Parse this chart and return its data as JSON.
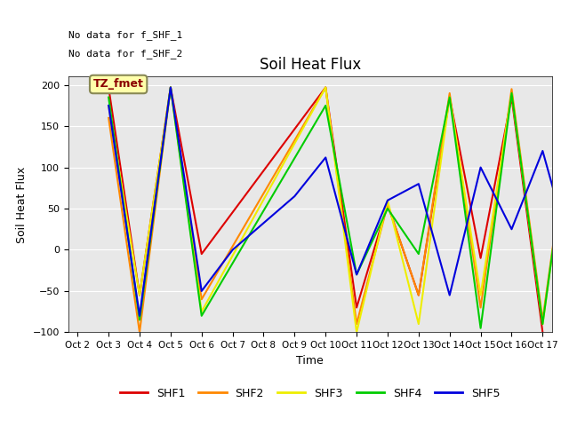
{
  "title": "Soil Heat Flux",
  "xlabel": "Time",
  "ylabel": "Soil Heat Flux",
  "ylim": [
    -100,
    210
  ],
  "yticks": [
    -100,
    -50,
    0,
    50,
    100,
    150,
    200
  ],
  "xtick_labels": [
    "Oct 2",
    "Oct 3",
    "Oct 4",
    "Oct 5",
    "Oct 6",
    "Oct 7",
    "Oct 8",
    "Oct 9",
    "Oct 10",
    "Oct 11",
    "Oct 12",
    "Oct 13",
    "Oct 14",
    "Oct 15",
    "Oct 16",
    "Oct 17"
  ],
  "annotations_top": [
    "No data for f_SHF_1",
    "No data for f_SHF_2"
  ],
  "box_label": "TZ_fmet",
  "series": {
    "SHF1": {
      "color": "#dd0000",
      "x": [
        1,
        2,
        3,
        4,
        8,
        9,
        10,
        11,
        12,
        13,
        14,
        15
      ],
      "y": [
        197,
        -55,
        197,
        -5,
        197,
        -70,
        55,
        -55,
        185,
        -10,
        185,
        -100
      ]
    },
    "SHF2": {
      "color": "#ff8800",
      "x": [
        1,
        2,
        3,
        4,
        8,
        9,
        10,
        11,
        12,
        13,
        14,
        15,
        16
      ],
      "y": [
        160,
        -100,
        197,
        -60,
        197,
        -90,
        55,
        -55,
        190,
        -70,
        195,
        -85,
        185
      ]
    },
    "SHF3": {
      "color": "#eeee00",
      "x": [
        1,
        2,
        3,
        4,
        8,
        9,
        10,
        11,
        12,
        13,
        14,
        15,
        16
      ],
      "y": [
        175,
        -55,
        197,
        -75,
        197,
        -100,
        60,
        -90,
        185,
        -55,
        190,
        -90,
        185
      ]
    },
    "SHF4": {
      "color": "#00cc00",
      "x": [
        1,
        2,
        3,
        4,
        8,
        9,
        10,
        11,
        12,
        13,
        14,
        15,
        16
      ],
      "y": [
        185,
        -85,
        197,
        -80,
        175,
        -30,
        50,
        -5,
        185,
        -95,
        190,
        -90,
        185
      ]
    },
    "SHF5": {
      "color": "#0000dd",
      "x": [
        1,
        2,
        3,
        4,
        5,
        7,
        8,
        9,
        10,
        11,
        12,
        13,
        14,
        15,
        16
      ],
      "y": [
        175,
        -80,
        197,
        -50,
        0,
        65,
        112,
        -30,
        60,
        80,
        -55,
        100,
        25,
        120,
        -15
      ]
    }
  },
  "legend_entries": [
    "SHF1",
    "SHF2",
    "SHF3",
    "SHF4",
    "SHF5"
  ],
  "legend_colors": [
    "#dd0000",
    "#ff8800",
    "#eeee00",
    "#00cc00",
    "#0000dd"
  ],
  "bg_color": "#e8e8e8"
}
